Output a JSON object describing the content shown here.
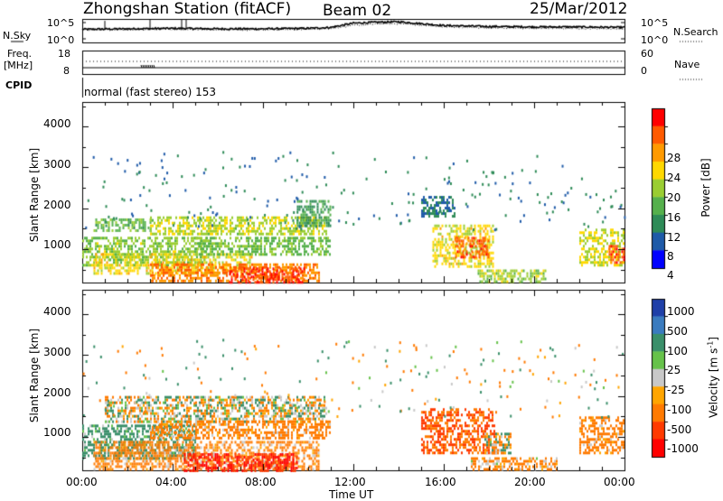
{
  "header": {
    "station": "Zhongshan Station (fitACF)",
    "beam": "Beam 02",
    "date": "25/Mar/2012"
  },
  "top_panels": {
    "nsky_label": "N.Sky",
    "nsearch_label": "N.Search",
    "noise_ticks": [
      "10^5",
      "10^0"
    ],
    "freq_label_1": "Freq.",
    "freq_label_2": "[MHz]",
    "freq_ticks": [
      "18",
      "8"
    ],
    "nave_label": "Nave",
    "nave_ticks": [
      "60",
      "0"
    ],
    "cpid_label": "CPID",
    "cpid_text": "normal (fast stereo) 153"
  },
  "x_axis": {
    "ticks": [
      "00:00",
      "04:00",
      "08:00",
      "12:00",
      "16:00",
      "20:00",
      "00:00"
    ],
    "label": "Time UT"
  },
  "y_axis": {
    "label": "Slant Range [km]",
    "ticks": [
      "1000",
      "2000",
      "3000",
      "4000"
    ]
  },
  "power_colorbar": {
    "title": "Power [dB]",
    "ticks": [
      "28",
      "24",
      "20",
      "16",
      "12",
      "8",
      "4"
    ],
    "colors": [
      "#ff0000",
      "#ff5a00",
      "#ff9a00",
      "#ffd800",
      "#9acd32",
      "#55b04c",
      "#2e8b57",
      "#1e5aa8",
      "#0000ff"
    ]
  },
  "velocity_colorbar": {
    "title": "Velocity [m s",
    "title_sup": "-1",
    "ticks": [
      "1000",
      "500",
      "100",
      "25",
      "-25",
      "-100",
      "-500",
      "-1000"
    ],
    "colors": [
      "#1f3fa8",
      "#3a7bbf",
      "#3a8f6a",
      "#66c24a",
      "#c8c8c8",
      "#ffa500",
      "#ff7a00",
      "#ff3a00",
      "#ff0000"
    ]
  },
  "chart_data": [
    {
      "type": "line",
      "name": "noise",
      "x_hours": [
        0,
        2,
        4,
        6,
        8,
        10,
        11,
        12,
        13,
        14,
        15,
        16,
        18,
        20,
        22,
        24
      ],
      "series": [
        {
          "name": "N.Sky",
          "values": [
            2.8,
            2.9,
            3.0,
            2.9,
            2.9,
            3.0,
            3.2,
            4.1,
            4.3,
            4.4,
            4.0,
            3.6,
            3.4,
            3.3,
            3.3,
            3.2
          ]
        },
        {
          "name": "N.Search",
          "values": [
            2.6,
            2.7,
            2.8,
            2.7,
            2.7,
            2.8,
            3.0,
            3.6,
            3.9,
            4.0,
            3.7,
            3.3,
            3.1,
            3.0,
            3.0,
            2.9
          ]
        }
      ],
      "ylim": [
        0,
        5
      ]
    },
    {
      "type": "line",
      "name": "frequency-nave",
      "x_hours": [
        0,
        24
      ],
      "series": [
        {
          "name": "Freq",
          "values": [
            11,
            11
          ]
        },
        {
          "name": "Nave",
          "values": [
            26,
            26
          ]
        }
      ],
      "ylim_freq": [
        8,
        18
      ],
      "ylim_nave": [
        0,
        60
      ]
    },
    {
      "type": "heatmap",
      "name": "power",
      "x_range_hours": [
        0,
        24
      ],
      "y_range_km": [
        180,
        4600
      ],
      "colorbar_range_db": [
        0,
        30
      ],
      "regions": [
        {
          "t0": 0.0,
          "t1": 5.5,
          "r0": 600,
          "r1": 1300,
          "v": 14
        },
        {
          "t0": 0.5,
          "t1": 7.5,
          "r0": 400,
          "r1": 900,
          "v": 18
        },
        {
          "t0": 3.0,
          "t1": 10.5,
          "r0": 200,
          "r1": 650,
          "v": 24
        },
        {
          "t0": 6.5,
          "t1": 9.8,
          "r0": 200,
          "r1": 550,
          "v": 28
        },
        {
          "t0": 0.5,
          "t1": 3.0,
          "r0": 1450,
          "r1": 1750,
          "v": 12
        },
        {
          "t0": 3.0,
          "t1": 10.8,
          "r0": 1350,
          "r1": 1800,
          "v": 16
        },
        {
          "t0": 5.0,
          "t1": 11.0,
          "r0": 900,
          "r1": 1300,
          "v": 13
        },
        {
          "t0": 9.5,
          "t1": 11.0,
          "r0": 1600,
          "r1": 2200,
          "v": 9
        },
        {
          "t0": 15.5,
          "t1": 18.2,
          "r0": 600,
          "r1": 1600,
          "v": 18
        },
        {
          "t0": 16.5,
          "t1": 18.0,
          "r0": 800,
          "r1": 1300,
          "v": 26
        },
        {
          "t0": 17.5,
          "t1": 20.5,
          "r0": 200,
          "r1": 500,
          "v": 15
        },
        {
          "t0": 15.0,
          "t1": 16.5,
          "r0": 1800,
          "r1": 2300,
          "v": 6
        },
        {
          "t0": 22.0,
          "t1": 24.0,
          "r0": 600,
          "r1": 1500,
          "v": 17
        },
        {
          "t0": 23.3,
          "t1": 24.0,
          "r0": 700,
          "r1": 1100,
          "v": 27
        }
      ]
    },
    {
      "type": "heatmap",
      "name": "velocity",
      "x_range_hours": [
        0,
        24
      ],
      "y_range_km": [
        180,
        4600
      ],
      "colorbar_values_mps": [
        -1000,
        -500,
        -100,
        -25,
        25,
        100,
        500,
        1000
      ],
      "regions": [
        {
          "t0": 0.0,
          "t1": 5.0,
          "r0": 500,
          "r1": 1300,
          "v": 150
        },
        {
          "t0": 0.5,
          "t1": 10.5,
          "r0": 200,
          "r1": 900,
          "v": -150
        },
        {
          "t0": 4.5,
          "t1": 9.5,
          "r0": 200,
          "r1": 600,
          "v": -700
        },
        {
          "t0": 1.0,
          "t1": 10.8,
          "r0": 1400,
          "r1": 2000,
          "v": 0
        },
        {
          "t0": 3.0,
          "t1": 11.0,
          "r0": 1000,
          "r1": 1400,
          "v": -150
        },
        {
          "t0": 15.0,
          "t1": 18.3,
          "r0": 600,
          "r1": 1700,
          "v": -300
        },
        {
          "t0": 17.2,
          "t1": 21.0,
          "r0": 200,
          "r1": 500,
          "v": -120
        },
        {
          "t0": 17.8,
          "t1": 19.0,
          "r0": 600,
          "r1": 1100,
          "v": 0
        },
        {
          "t0": 22.0,
          "t1": 24.0,
          "r0": 600,
          "r1": 1500,
          "v": -150
        }
      ]
    }
  ]
}
